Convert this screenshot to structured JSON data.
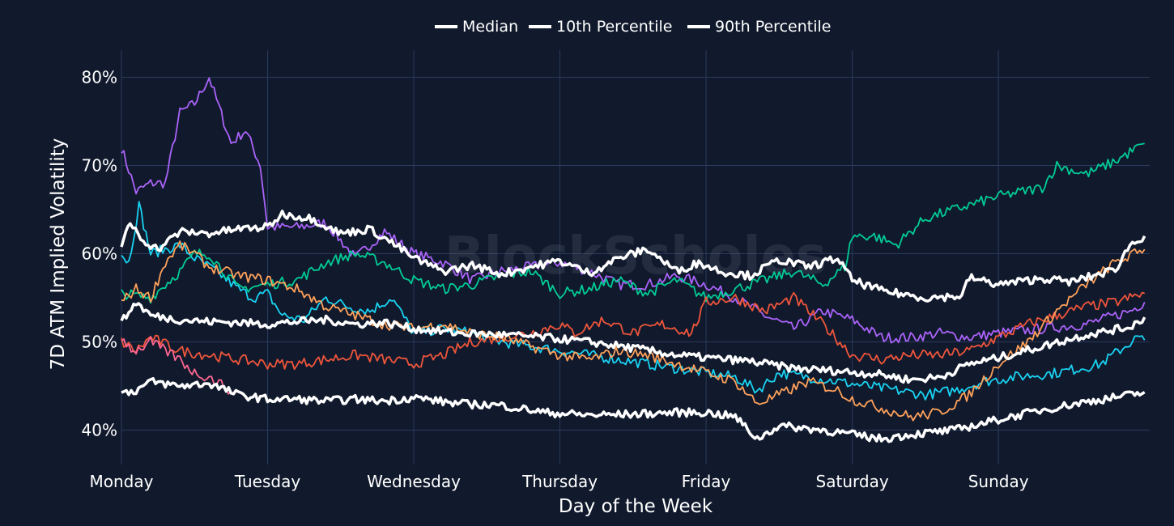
{
  "watermark": "BlockScholes",
  "chart_data": {
    "type": "line",
    "xlabel": "Day of the Week",
    "ylabel": "7D ATM Implied Volatility",
    "categories": [
      "Monday",
      "Tuesday",
      "Wednesday",
      "Thursday",
      "Friday",
      "Saturday",
      "Sunday"
    ],
    "xlim": [
      0,
      7
    ],
    "ylim": [
      36.5,
      83
    ],
    "yticks": [
      40,
      50,
      60,
      70,
      80
    ],
    "ytick_labels": [
      "40%",
      "50%",
      "60%",
      "70%",
      "80%"
    ],
    "grid": true,
    "legend_position": "top-center",
    "legend": [
      "Median",
      "10th Percentile",
      "90th Percentile"
    ],
    "series": [
      {
        "name": "Median",
        "color": "#ffffff",
        "width": 3.5,
        "x": [
          0,
          0.1,
          0.2,
          0.4,
          0.6,
          0.8,
          1.0,
          1.2,
          1.4,
          1.6,
          1.8,
          2.0,
          2.3,
          2.6,
          2.9,
          3.2,
          3.5,
          3.8,
          4.0,
          4.3,
          4.6,
          4.9,
          5.2,
          5.4,
          5.6,
          5.8,
          6.0,
          6.3,
          6.6,
          6.9,
          7.0
        ],
        "y": [
          52.2,
          54.5,
          53.0,
          52.5,
          52.3,
          52.2,
          52.0,
          52.3,
          52.5,
          52.0,
          52.2,
          51.5,
          51.0,
          50.8,
          50.5,
          50.0,
          49.3,
          48.5,
          48.2,
          47.8,
          47.0,
          46.7,
          46.3,
          45.7,
          46.0,
          47.5,
          48.2,
          49.5,
          50.8,
          51.7,
          52.8
        ]
      },
      {
        "name": "10th Percentile",
        "color": "#ffffff",
        "width": 3.5,
        "x": [
          0,
          0.1,
          0.2,
          0.4,
          0.6,
          0.8,
          1.0,
          1.2,
          1.4,
          1.6,
          1.8,
          2.0,
          2.3,
          2.6,
          2.9,
          3.2,
          3.5,
          3.8,
          4.0,
          4.2,
          4.35,
          4.5,
          4.8,
          5.0,
          5.2,
          5.4,
          5.7,
          6.0,
          6.3,
          6.6,
          6.9,
          7.0
        ],
        "y": [
          44.2,
          44.5,
          45.5,
          45.0,
          45.3,
          44.0,
          43.5,
          43.5,
          43.3,
          43.5,
          43.3,
          43.7,
          43.0,
          42.8,
          42.0,
          41.7,
          41.8,
          42.0,
          42.0,
          41.5,
          39.0,
          40.5,
          40.0,
          39.5,
          39.0,
          39.5,
          40.0,
          41.2,
          42.3,
          43.2,
          44.0,
          44.3
        ]
      },
      {
        "name": "90th Percentile",
        "color": "#ffffff",
        "width": 3.5,
        "x": [
          0,
          0.06,
          0.15,
          0.25,
          0.4,
          0.6,
          0.8,
          1.0,
          1.1,
          1.3,
          1.5,
          1.7,
          1.9,
          2.0,
          2.2,
          2.4,
          2.6,
          2.8,
          3.0,
          3.2,
          3.4,
          3.6,
          3.8,
          3.95,
          4.1,
          4.3,
          4.5,
          4.7,
          4.9,
          5.0,
          5.2,
          5.5,
          5.75,
          5.8,
          6.0,
          6.3,
          6.5,
          6.8,
          6.9,
          7.0
        ],
        "y": [
          60.8,
          63.5,
          61.5,
          60.5,
          62.5,
          62.3,
          62.8,
          63.0,
          64.5,
          64.0,
          62.3,
          62.8,
          60.7,
          59.5,
          58.0,
          58.7,
          57.7,
          58.5,
          59.2,
          57.8,
          59.5,
          60.5,
          58.0,
          59.0,
          58.0,
          57.5,
          59.3,
          58.5,
          59.5,
          57.0,
          55.8,
          55.0,
          55.2,
          57.3,
          56.5,
          57.2,
          56.8,
          58.2,
          61.0,
          62.0
        ]
      },
      {
        "name": "",
        "color": "#ab63fa",
        "width": 1.8,
        "x": [
          0,
          0.1,
          0.2,
          0.3,
          0.4,
          0.5,
          0.6,
          0.7,
          0.75,
          0.85,
          0.95,
          1.0,
          1.2,
          1.4,
          1.6,
          1.8,
          2.0,
          2.2,
          2.4,
          2.6,
          2.8,
          3.0,
          3.2,
          3.4,
          3.6,
          3.8,
          4.0,
          4.2,
          4.4,
          4.6,
          4.8,
          5.0,
          5.2,
          5.4,
          5.6,
          5.8,
          6.0,
          6.3,
          6.6,
          6.9,
          7.0
        ],
        "y": [
          72.0,
          67.0,
          68.0,
          68.0,
          76.0,
          77.0,
          80.0,
          75.0,
          72.5,
          74.0,
          70.0,
          63.0,
          63.0,
          63.5,
          59.5,
          62.5,
          60.0,
          59.0,
          57.0,
          58.0,
          58.5,
          59.0,
          58.0,
          56.5,
          56.5,
          57.5,
          56.5,
          55.0,
          53.0,
          51.5,
          53.5,
          52.5,
          50.5,
          50.5,
          51.0,
          50.5,
          51.0,
          51.5,
          52.0,
          53.5,
          54.5
        ]
      },
      {
        "name": "",
        "color": "#19d3f3",
        "width": 1.8,
        "x": [
          0,
          0.05,
          0.12,
          0.2,
          0.3,
          0.4,
          0.5,
          0.65,
          0.8,
          0.9,
          1.0,
          1.1,
          1.25,
          1.4,
          1.55,
          1.7,
          1.85,
          2.0,
          2.2,
          2.4,
          2.6,
          2.8,
          3.0,
          3.2,
          3.4,
          3.6,
          3.8,
          4.0,
          4.2,
          4.35,
          4.5,
          4.7,
          4.9,
          5.1,
          5.3,
          5.5,
          5.7,
          5.9,
          6.1,
          6.4,
          6.7,
          6.95,
          7.0
        ],
        "y": [
          60.0,
          59.0,
          65.5,
          60.0,
          60.5,
          61.0,
          59.5,
          58.0,
          56.0,
          55.0,
          55.5,
          53.0,
          52.5,
          55.0,
          54.0,
          53.5,
          55.0,
          51.0,
          51.5,
          51.0,
          50.0,
          49.5,
          49.0,
          48.5,
          48.0,
          47.5,
          47.0,
          46.5,
          46.0,
          44.5,
          46.5,
          46.0,
          45.5,
          45.0,
          44.5,
          44.0,
          44.5,
          45.5,
          46.0,
          46.5,
          47.5,
          50.5,
          50.2
        ]
      },
      {
        "name": "",
        "color": "#00cc96",
        "width": 1.8,
        "x": [
          0,
          0.2,
          0.4,
          0.5,
          0.6,
          0.8,
          1.0,
          1.2,
          1.4,
          1.6,
          1.8,
          2.0,
          2.2,
          2.4,
          2.6,
          2.8,
          3.0,
          3.2,
          3.4,
          3.6,
          3.8,
          4.0,
          4.2,
          4.4,
          4.6,
          4.8,
          4.95,
          5.0,
          5.15,
          5.3,
          5.5,
          5.7,
          6.0,
          6.3,
          6.4,
          6.6,
          6.8,
          7.0
        ],
        "y": [
          55.5,
          55.0,
          58.0,
          60.0,
          60.0,
          56.0,
          56.5,
          57.0,
          59.0,
          60.0,
          59.0,
          57.0,
          56.0,
          56.5,
          57.5,
          58.0,
          55.5,
          56.0,
          57.0,
          55.5,
          57.0,
          55.0,
          56.0,
          57.0,
          58.0,
          56.5,
          58.5,
          62.0,
          62.0,
          61.0,
          64.0,
          65.0,
          66.5,
          67.5,
          70.0,
          69.0,
          70.5,
          72.5
        ]
      },
      {
        "name": "",
        "color": "#ef553b",
        "width": 1.8,
        "x": [
          0,
          0.1,
          0.2,
          0.4,
          0.6,
          0.8,
          1.0,
          1.2,
          1.4,
          1.6,
          1.8,
          2.0,
          2.2,
          2.4,
          2.6,
          2.8,
          3.0,
          3.1,
          3.3,
          3.5,
          3.7,
          3.9,
          4.0,
          4.2,
          4.4,
          4.6,
          4.8,
          5.0,
          5.2,
          5.4,
          5.6,
          5.8,
          6.0,
          6.2,
          6.4,
          6.6,
          6.8,
          7.0
        ],
        "y": [
          50.0,
          49.0,
          50.5,
          49.0,
          48.5,
          48.0,
          47.5,
          47.5,
          48.0,
          48.5,
          48.0,
          47.5,
          48.5,
          50.0,
          50.5,
          51.0,
          52.0,
          51.0,
          52.5,
          51.0,
          52.0,
          51.0,
          54.5,
          55.0,
          53.5,
          55.0,
          52.0,
          48.5,
          48.0,
          48.5,
          48.5,
          49.0,
          50.5,
          52.0,
          53.0,
          54.0,
          54.5,
          55.5
        ]
      },
      {
        "name": "",
        "color": "#ffa15a",
        "width": 1.8,
        "x": [
          0,
          0.1,
          0.2,
          0.3,
          0.4,
          0.5,
          0.6,
          0.8,
          1.0,
          1.2,
          1.4,
          1.6,
          1.8,
          2.0,
          2.2,
          2.4,
          2.6,
          2.8,
          3.0,
          3.2,
          3.4,
          3.6,
          3.8,
          4.0,
          4.2,
          4.35,
          4.5,
          4.7,
          4.9,
          5.0,
          5.2,
          5.4,
          5.6,
          5.8,
          6.0,
          6.2,
          6.4,
          6.6,
          6.8,
          7.0
        ],
        "y": [
          54.5,
          56.0,
          55.0,
          59.0,
          61.0,
          60.0,
          58.5,
          57.5,
          57.0,
          56.0,
          54.0,
          53.0,
          52.0,
          51.5,
          52.0,
          51.0,
          50.5,
          49.5,
          48.5,
          48.0,
          49.0,
          48.5,
          47.5,
          46.5,
          45.5,
          43.0,
          44.0,
          45.5,
          44.5,
          43.5,
          42.5,
          41.5,
          42.0,
          44.0,
          47.5,
          50.0,
          53.5,
          56.5,
          59.0,
          60.5
        ]
      },
      {
        "name": "",
        "color": "#ff6692",
        "width": 1.8,
        "x": [
          0,
          0.05,
          0.1,
          0.2,
          0.3,
          0.4,
          0.5,
          0.6,
          0.7,
          0.75
        ],
        "y": [
          50.5,
          49.5,
          49.0,
          50.0,
          49.0,
          48.0,
          46.5,
          46.0,
          45.0,
          44.5
        ]
      }
    ]
  }
}
